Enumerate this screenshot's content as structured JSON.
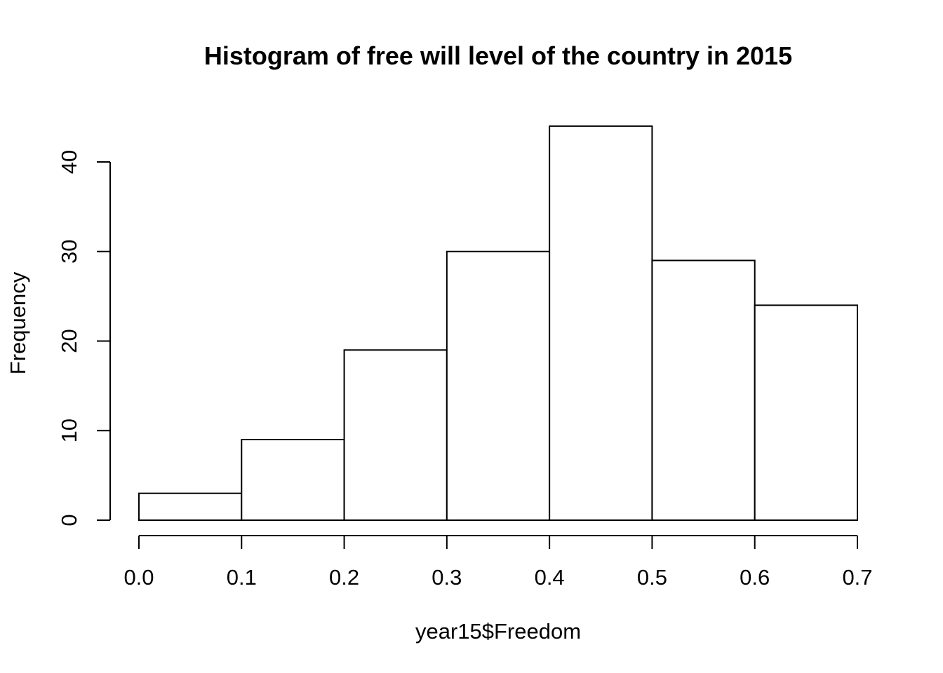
{
  "chart_data": {
    "type": "bar",
    "title": "Histogram of free will level of the country in 2015",
    "xlabel": "year15$Freedom",
    "ylabel": "Frequency",
    "bins": [
      {
        "start": 0.0,
        "end": 0.1,
        "count": 3
      },
      {
        "start": 0.1,
        "end": 0.2,
        "count": 9
      },
      {
        "start": 0.2,
        "end": 0.3,
        "count": 19
      },
      {
        "start": 0.3,
        "end": 0.4,
        "count": 30
      },
      {
        "start": 0.4,
        "end": 0.5,
        "count": 44
      },
      {
        "start": 0.5,
        "end": 0.6,
        "count": 29
      },
      {
        "start": 0.6,
        "end": 0.7,
        "count": 24
      }
    ],
    "xlim": [
      0.0,
      0.7
    ],
    "ylim": [
      0,
      40
    ],
    "x_ticks": [
      "0.0",
      "0.1",
      "0.2",
      "0.3",
      "0.4",
      "0.5",
      "0.6",
      "0.7"
    ],
    "y_ticks": [
      "0",
      "10",
      "20",
      "30",
      "40"
    ],
    "grid": false,
    "colors": {
      "bar_fill": "#ffffff",
      "bar_stroke": "#000000",
      "axis": "#000000",
      "background": "#ffffff"
    }
  }
}
